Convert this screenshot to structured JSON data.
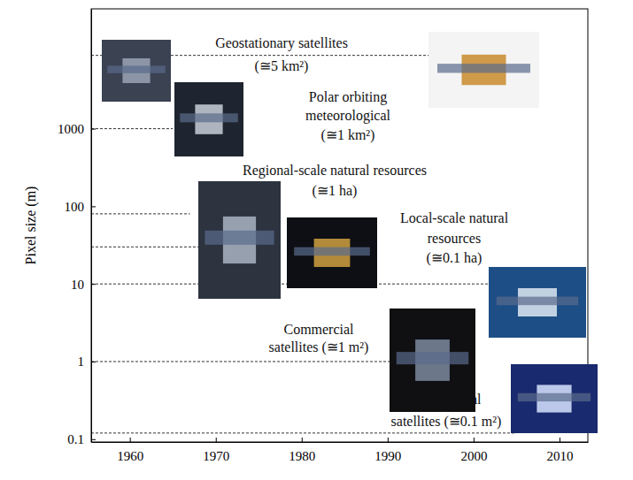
{
  "chart_data": {
    "type": "line",
    "log": "y",
    "grid": false,
    "ylabel": "Pixel size (m)",
    "xlim": [
      1955.5,
      2013.3
    ],
    "xticks": [
      1960,
      1970,
      1980,
      1990,
      2000,
      2010
    ],
    "ylim": [
      0.092,
      35000
    ],
    "yticks": [
      0.1,
      1,
      10,
      100,
      1000
    ],
    "series": [
      {
        "type": "line",
        "line_style": "dashed",
        "color": "#333333",
        "x": [
          1955.5,
          1995
        ],
        "values": [
          8800,
          8800
        ]
      },
      {
        "type": "line",
        "line_style": "dashed",
        "color": "#333333",
        "x": [
          1955.5,
          1965
        ],
        "values": [
          1000,
          1000
        ]
      },
      {
        "type": "line",
        "line_style": "dashed",
        "color": "#333333",
        "x": [
          1955.5,
          1967
        ],
        "values": [
          80,
          80
        ]
      },
      {
        "type": "line",
        "line_style": "dashed",
        "color": "#333333",
        "x": [
          1955.5,
          1968
        ],
        "values": [
          30,
          30
        ]
      },
      {
        "type": "line",
        "line_style": "dashed",
        "color": "#333333",
        "x": [
          1955.5,
          2002
        ],
        "values": [
          10,
          10
        ]
      },
      {
        "type": "line",
        "line_style": "dashed",
        "color": "#333333",
        "x": [
          1955.5,
          1991
        ],
        "values": [
          1,
          1
        ]
      },
      {
        "type": "line",
        "line_style": "dashed",
        "color": "#333333",
        "x": [
          1955.5,
          2005
        ],
        "values": [
          0.12,
          0.12
        ]
      }
    ],
    "annotations": [
      [
        "Geostationary satellites",
        "(≅5 km²)"
      ],
      [
        "Polar orbiting",
        "meteorological",
        "(≅1 km²)"
      ],
      [
        "Regional-scale natural resources",
        "(≅1 ha)"
      ],
      [
        "Local-scale natural",
        "resources",
        "(≅0.1 ha)"
      ],
      [
        "Commercial",
        "satellites (≅1 m²)"
      ],
      [
        "Commercial",
        "satellites (≅0.1 m²)"
      ]
    ]
  }
}
